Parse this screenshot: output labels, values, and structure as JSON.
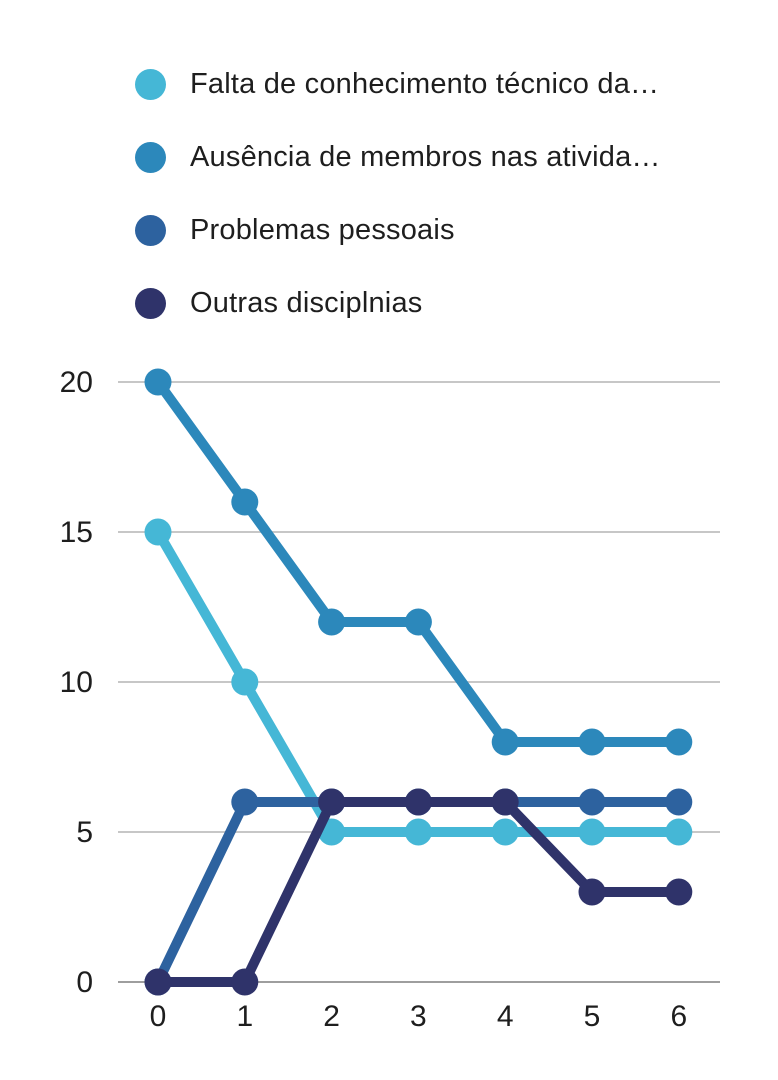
{
  "legend": {
    "items": [
      {
        "label": "Falta de conhecimento técnico da…",
        "color": "#45B7D6"
      },
      {
        "label": "Ausência de membros nas ativida…",
        "color": "#2C88BB"
      },
      {
        "label": "Problemas pessoais",
        "color": "#2D629F"
      },
      {
        "label": "Outras disciplnias",
        "color": "#2F336A"
      }
    ]
  },
  "chart_data": {
    "type": "line",
    "title": "",
    "xlabel": "",
    "ylabel": "",
    "x": [
      0,
      1,
      2,
      3,
      4,
      5,
      6
    ],
    "x_tick_labels": [
      "0",
      "1",
      "2",
      "3",
      "4",
      "5",
      "6"
    ],
    "y_ticks": [
      0,
      5,
      10,
      15,
      20
    ],
    "y_tick_labels": [
      "0",
      "5",
      "10",
      "15",
      "20"
    ],
    "ylim": [
      0,
      20
    ],
    "grid": true,
    "legend_position": "top-left",
    "series": [
      {
        "name": "Falta de conhecimento técnico da…",
        "color": "#45B7D6",
        "values": [
          15,
          10,
          5,
          5,
          5,
          5,
          5
        ]
      },
      {
        "name": "Ausência de membros nas ativida…",
        "color": "#2C88BB",
        "values": [
          20,
          16,
          12,
          12,
          8,
          8,
          8
        ]
      },
      {
        "name": "Problemas pessoais",
        "color": "#2D629F",
        "values": [
          0,
          6,
          6,
          6,
          6,
          6,
          6
        ]
      },
      {
        "name": "Outras disciplnias",
        "color": "#2F336A",
        "values": [
          0,
          0,
          6,
          6,
          6,
          3,
          3
        ]
      }
    ]
  },
  "style": {
    "grid_color": "#C7C7C7",
    "baseline_color": "#9E9E9E",
    "text_color": "#1E1E1E",
    "background": "#FFFFFF"
  }
}
